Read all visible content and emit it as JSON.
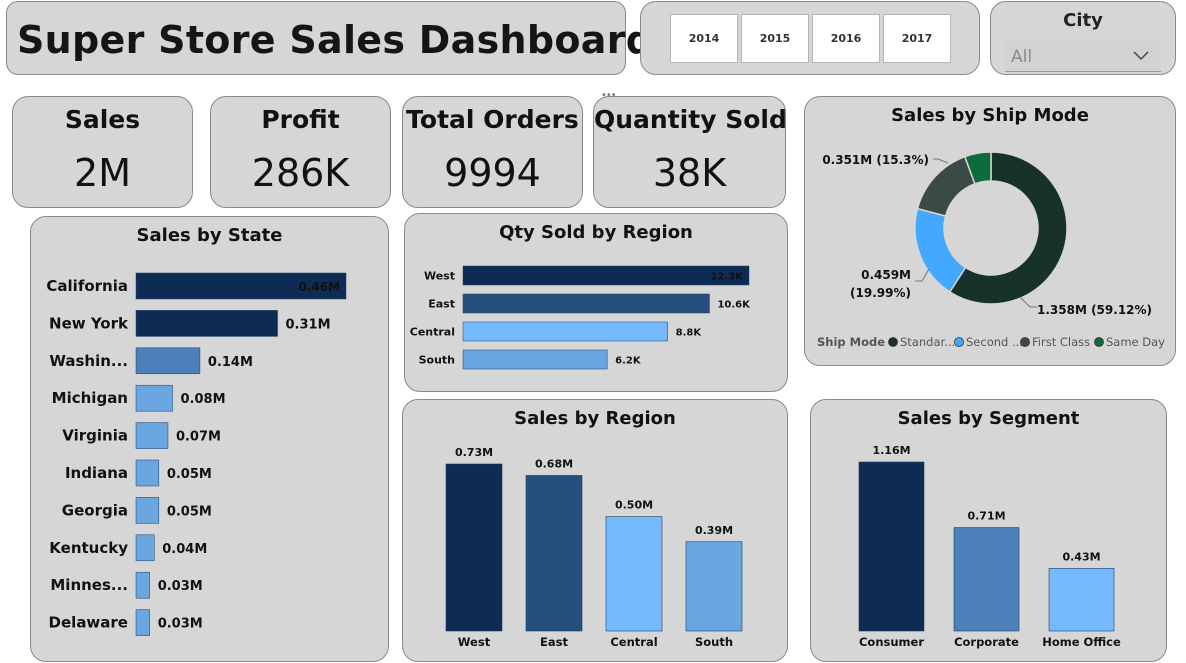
{
  "header": {
    "title": "Super Store Sales Dashboard"
  },
  "year_slicer": {
    "years": [
      "2014",
      "2015",
      "2016",
      "2017"
    ]
  },
  "city_slicer": {
    "label": "City",
    "value": "All"
  },
  "kpis": [
    {
      "label": "Sales",
      "value": "2M"
    },
    {
      "label": "Profit",
      "value": "286K"
    },
    {
      "label": "Total Orders",
      "value": "9994"
    },
    {
      "label": "Quantity Sold",
      "value": "38K"
    }
  ],
  "colors": {
    "navy": "#0e2b53",
    "steel": "#25507e",
    "mid": "#4c80b8",
    "light": "#6aa6e0",
    "sky": "#75baff",
    "donut_dark": "#17322b",
    "donut_blue": "#43a9ff",
    "donut_grey": "#3c4a47",
    "donut_green": "#0e6b3a"
  },
  "chart_data": [
    {
      "type": "bar",
      "orientation": "horizontal",
      "title": "Sales by State",
      "categories": [
        "California",
        "New York",
        "Washin...",
        "Michigan",
        "Virginia",
        "Indiana",
        "Georgia",
        "Kentucky",
        "Minnes...",
        "Delaware"
      ],
      "values": [
        0.46,
        0.31,
        0.14,
        0.08,
        0.07,
        0.05,
        0.05,
        0.04,
        0.03,
        0.03
      ],
      "labels": [
        "0.46M",
        "0.31M",
        "0.14M",
        "0.08M",
        "0.07M",
        "0.05M",
        "0.05M",
        "0.04M",
        "0.03M",
        "0.03M"
      ],
      "unit": "M"
    },
    {
      "type": "bar",
      "orientation": "horizontal",
      "title": "Qty Sold by Region",
      "categories": [
        "West",
        "East",
        "Central",
        "South"
      ],
      "values": [
        12.3,
        10.6,
        8.8,
        6.2
      ],
      "labels": [
        "12.3K",
        "10.6K",
        "8.8K",
        "6.2K"
      ],
      "unit": "K"
    },
    {
      "type": "pie",
      "title": "Sales by Ship Mode",
      "legend_title": "Ship Mode",
      "legend_position": "bottom",
      "categories": [
        "Standar...",
        "Second ...",
        "First Class",
        "Same Day"
      ],
      "values": [
        59.12,
        19.99,
        15.3,
        5.59
      ],
      "labels": [
        "1.358M (59.12%)",
        "0.459M (19.99%)",
        "0.351M (15.3%)",
        ""
      ]
    },
    {
      "type": "bar",
      "title": "Sales by Region",
      "categories": [
        "West",
        "East",
        "Central",
        "South"
      ],
      "values": [
        0.73,
        0.68,
        0.5,
        0.39
      ],
      "labels": [
        "0.73M",
        "0.68M",
        "0.50M",
        "0.39M"
      ],
      "unit": "M"
    },
    {
      "type": "bar",
      "title": "Sales by Segment",
      "categories": [
        "Consumer",
        "Corporate",
        "Home Office"
      ],
      "values": [
        1.16,
        0.71,
        0.43
      ],
      "labels": [
        "1.16M",
        "0.71M",
        "0.43M"
      ],
      "unit": "M"
    }
  ]
}
